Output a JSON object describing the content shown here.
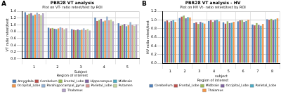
{
  "chart_data": [
    {
      "type": "bar",
      "panel_label": "A",
      "title": "PBR28 VT analysis",
      "subtitle": "Plot on VT- ratio retest/test by ROI",
      "x_label": "Subject",
      "y_label": "VT ratio retest/test",
      "legend_title": "Region of interest",
      "categories": [
        "1",
        "2",
        "3",
        "4",
        "5"
      ],
      "series": [
        {
          "name": "Amygdala",
          "color": "#4f81bd",
          "values": [
            1.38,
            0.92,
            0.88,
            1.22,
            1.05
          ]
        },
        {
          "name": "Cerebelum",
          "color": "#c0504d",
          "values": [
            1.3,
            0.9,
            0.86,
            1.12,
            0.98
          ]
        },
        {
          "name": "Frontal_Lobe",
          "color": "#9bbb59",
          "values": [
            1.33,
            0.91,
            0.84,
            1.15,
            1.0
          ]
        },
        {
          "name": "Hippocampus",
          "color": "#8064a2",
          "values": [
            1.35,
            0.89,
            0.87,
            1.18,
            1.03
          ]
        },
        {
          "name": "Midbrain",
          "color": "#4bacc6",
          "values": [
            1.28,
            0.88,
            0.85,
            1.1,
            0.96
          ]
        },
        {
          "name": "Occipital_Lobe",
          "color": "#f79646",
          "values": [
            1.31,
            0.9,
            0.86,
            1.13,
            0.99
          ]
        },
        {
          "name": "Parahippocampal_gyrus",
          "color": "#95b3d7",
          "values": [
            1.36,
            0.93,
            0.9,
            1.25,
            1.08
          ]
        },
        {
          "name": "Parietal_Lobe",
          "color": "#d99694",
          "values": [
            1.32,
            0.91,
            0.85,
            1.14,
            1.0
          ]
        },
        {
          "name": "Putamen",
          "color": "#c3d69b",
          "values": [
            1.29,
            0.87,
            0.88,
            1.16,
            0.97
          ]
        },
        {
          "name": "Thalamus",
          "color": "#b3a2c7",
          "values": [
            1.34,
            0.9,
            0.83,
            1.11,
            1.02
          ]
        }
      ],
      "ylim": [
        0,
        1.4
      ],
      "yticks": [
        {
          "value": 0,
          "label": "0.0"
        },
        {
          "value": 0.2,
          "label": "0.2"
        },
        {
          "value": 0.4,
          "label": "0.4"
        },
        {
          "value": 0.6,
          "label": "0.6"
        },
        {
          "value": 0.8,
          "label": "0.8"
        },
        {
          "value": 1,
          "label": "1.0"
        },
        {
          "value": 1.2,
          "label": "1.2"
        },
        {
          "value": 1.4,
          "label": "1.4"
        }
      ],
      "grid": true,
      "legend": "bottom"
    },
    {
      "type": "bar",
      "panel_label": "B",
      "title": "PBR28 VT analysis - HV",
      "subtitle": "Plot on HV Vt- ratio retest/test by ROI",
      "x_label": "subject",
      "y_label": "HV ratio retest/test",
      "legend_title": "Region of interest",
      "categories": [
        "1",
        "2",
        "3",
        "4",
        "5",
        "6",
        "7",
        "8"
      ],
      "series": [
        {
          "name": "Cerebellum",
          "color": "#4f81bd",
          "values": [
            0.97,
            1.05,
            0.93,
            0.98,
            0.95,
            0.97,
            0.9,
            1.02
          ]
        },
        {
          "name": "Frontal_Lobe",
          "color": "#c0504d",
          "values": [
            0.99,
            1.08,
            0.95,
            1.0,
            0.92,
            0.99,
            0.88,
            1.01
          ]
        },
        {
          "name": "Midbrain",
          "color": "#9bbb59",
          "values": [
            0.95,
            1.1,
            0.91,
            0.96,
            0.97,
            1.0,
            0.93,
            1.03
          ]
        },
        {
          "name": "Occipital_Lobe",
          "color": "#8064a2",
          "values": [
            0.98,
            1.04,
            0.96,
            0.99,
            0.93,
            0.96,
            0.89,
            1.0
          ]
        },
        {
          "name": "Parietal_Lobe",
          "color": "#4bacc6",
          "values": [
            1.0,
            1.07,
            0.94,
            1.01,
            0.94,
            0.98,
            0.87,
            1.02
          ]
        },
        {
          "name": "Thalamus",
          "color": "#f79646",
          "values": [
            0.96,
            1.06,
            0.92,
            0.97,
            0.96,
            1.01,
            0.91,
            1.04
          ]
        }
      ],
      "ylim": [
        0,
        1.2
      ],
      "yticks": [
        {
          "value": 0,
          "label": "0.0"
        },
        {
          "value": 0.2,
          "label": "0.2"
        },
        {
          "value": 0.4,
          "label": "0.4"
        },
        {
          "value": 0.6,
          "label": "0.6"
        },
        {
          "value": 0.8,
          "label": "0.8"
        },
        {
          "value": 1,
          "label": "1.0"
        },
        {
          "value": 1.2,
          "label": "1.2"
        }
      ],
      "grid": true,
      "legend": "bottom"
    }
  ]
}
